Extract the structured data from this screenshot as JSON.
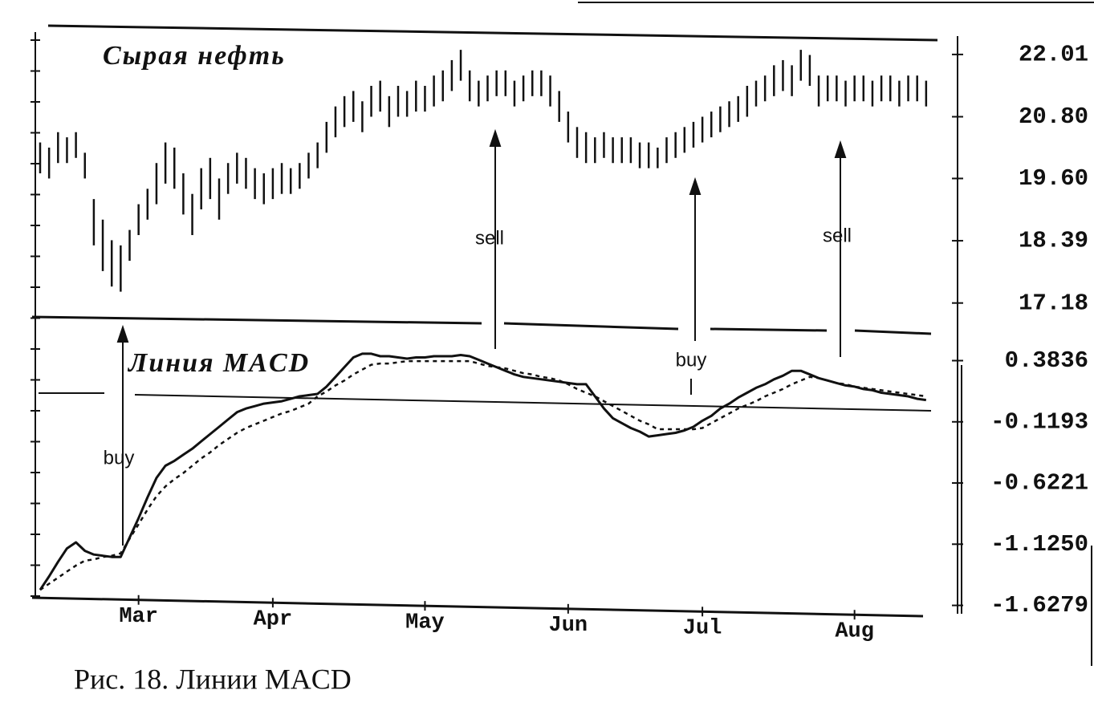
{
  "caption": "Рис. 18. Линии MACD",
  "chart_data": [
    {
      "type": "ohlc",
      "title": "Сырая нефть",
      "color": "#111111",
      "high": [
        20.3,
        20.2,
        20.5,
        20.4,
        20.5,
        20.1,
        19.2,
        18.8,
        18.4,
        18.3,
        18.6,
        19.1,
        19.4,
        19.9,
        20.3,
        20.2,
        19.7,
        19.3,
        19.8,
        20.0,
        19.6,
        19.9,
        20.1,
        20.0,
        19.8,
        19.7,
        19.8,
        19.9,
        19.8,
        19.9,
        20.1,
        20.3,
        20.7,
        21.0,
        21.2,
        21.3,
        21.1,
        21.4,
        21.5,
        21.2,
        21.4,
        21.3,
        21.5,
        21.4,
        21.6,
        21.7,
        21.9,
        22.1,
        21.7,
        21.5,
        21.6,
        21.7,
        21.7,
        21.5,
        21.6,
        21.7,
        21.7,
        21.6,
        21.3,
        20.9,
        20.6,
        20.5,
        20.4,
        20.5,
        20.4,
        20.4,
        20.4,
        20.3,
        20.3,
        20.2,
        20.4,
        20.5,
        20.6,
        20.7,
        20.8,
        20.9,
        21.0,
        21.1,
        21.2,
        21.4,
        21.5,
        21.6,
        21.8,
        21.9,
        21.8,
        22.1,
        22.0,
        21.6,
        21.6,
        21.6,
        21.5,
        21.6,
        21.6,
        21.5,
        21.6,
        21.6,
        21.5,
        21.6,
        21.6,
        21.5
      ],
      "low": [
        19.7,
        19.6,
        19.9,
        19.9,
        20.0,
        19.6,
        18.3,
        17.8,
        17.5,
        17.4,
        18.0,
        18.5,
        18.8,
        19.1,
        19.5,
        19.4,
        18.9,
        18.5,
        19.0,
        19.2,
        18.8,
        19.3,
        19.5,
        19.4,
        19.2,
        19.1,
        19.2,
        19.3,
        19.3,
        19.4,
        19.6,
        19.8,
        20.1,
        20.4,
        20.6,
        20.7,
        20.5,
        20.8,
        20.9,
        20.6,
        20.8,
        20.8,
        20.9,
        20.9,
        21.0,
        21.1,
        21.3,
        21.5,
        21.1,
        21.0,
        21.1,
        21.2,
        21.2,
        21.0,
        21.1,
        21.2,
        21.2,
        21.0,
        20.7,
        20.3,
        20.0,
        19.9,
        19.9,
        20.0,
        19.9,
        19.9,
        19.9,
        19.8,
        19.8,
        19.8,
        19.9,
        20.0,
        20.1,
        20.2,
        20.3,
        20.4,
        20.5,
        20.6,
        20.7,
        20.8,
        21.0,
        21.1,
        21.2,
        21.3,
        21.2,
        21.5,
        21.4,
        21.0,
        21.1,
        21.1,
        21.0,
        21.1,
        21.1,
        21.0,
        21.1,
        21.1,
        21.0,
        21.1,
        21.1,
        21.0
      ],
      "xlim": [
        0,
        100
      ],
      "ylim": [
        16.91,
        22.32
      ],
      "yticks": [
        22.01,
        {
          "value": 20.8,
          "label": "20.80"
        },
        {
          "value": 19.6,
          "label": "19.60"
        },
        18.39,
        17.18
      ],
      "annotations": [
        "sell",
        "sell"
      ]
    },
    {
      "type": "line",
      "title": "Линия MACD",
      "series": [
        {
          "color": "#111111",
          "style": "solid",
          "values": [
            -1.5,
            -1.39,
            -1.27,
            -1.16,
            -1.11,
            -1.18,
            -1.21,
            -1.22,
            -1.23,
            -1.23,
            -1.07,
            -0.91,
            -0.74,
            -0.58,
            -0.48,
            -0.44,
            -0.39,
            -0.34,
            -0.28,
            -0.22,
            -0.16,
            -0.1,
            -0.04,
            -0.01,
            0.01,
            0.03,
            0.04,
            0.05,
            0.07,
            0.09,
            0.1,
            0.11,
            0.17,
            0.25,
            0.33,
            0.41,
            0.44,
            0.44,
            0.42,
            0.42,
            0.41,
            0.4,
            0.41,
            0.41,
            0.42,
            0.42,
            0.42,
            0.43,
            0.42,
            0.39,
            0.36,
            0.33,
            0.3,
            0.27,
            0.25,
            0.24,
            0.23,
            0.22,
            0.21,
            0.2,
            0.19,
            0.19,
            0.09,
            -0.01,
            -0.09,
            -0.13,
            -0.17,
            -0.2,
            -0.24,
            -0.23,
            -0.22,
            -0.21,
            -0.19,
            -0.16,
            -0.11,
            -0.07,
            -0.01,
            0.03,
            0.08,
            0.12,
            0.16,
            0.19,
            0.23,
            0.26,
            0.3,
            0.3,
            0.27,
            0.24,
            0.22,
            0.2,
            0.18,
            0.17,
            0.15,
            0.14,
            0.12,
            0.11,
            0.1,
            0.09,
            0.07,
            0.06
          ]
        },
        {
          "color": "#111111",
          "style": "dotted",
          "values": [
            -1.5,
            -1.45,
            -1.4,
            -1.35,
            -1.3,
            -1.26,
            -1.25,
            -1.23,
            -1.22,
            -1.2,
            -1.08,
            -0.96,
            -0.84,
            -0.73,
            -0.65,
            -0.59,
            -0.54,
            -0.48,
            -0.42,
            -0.37,
            -0.31,
            -0.26,
            -0.21,
            -0.17,
            -0.14,
            -0.11,
            -0.08,
            -0.05,
            -0.03,
            0.0,
            0.03,
            0.09,
            0.13,
            0.18,
            0.22,
            0.27,
            0.31,
            0.35,
            0.36,
            0.36,
            0.37,
            0.38,
            0.38,
            0.38,
            0.38,
            0.38,
            0.38,
            0.38,
            0.38,
            0.36,
            0.34,
            0.33,
            0.32,
            0.3,
            0.28,
            0.27,
            0.25,
            0.24,
            0.22,
            0.19,
            0.15,
            0.12,
            0.09,
            0.05,
            0.01,
            -0.03,
            -0.07,
            -0.11,
            -0.14,
            -0.18,
            -0.18,
            -0.18,
            -0.18,
            -0.18,
            -0.17,
            -0.13,
            -0.09,
            -0.05,
            -0.01,
            0.02,
            0.05,
            0.09,
            0.12,
            0.15,
            0.19,
            0.22,
            0.25,
            0.24,
            0.22,
            0.2,
            0.19,
            0.17,
            0.16,
            0.15,
            0.14,
            0.13,
            0.12,
            0.11,
            0.1,
            0.09
          ]
        }
      ],
      "xlim": [
        0,
        100
      ],
      "ylim": [
        -1.69,
        0.71
      ],
      "yticks": [
        0.3836,
        -0.1193,
        -0.6221,
        {
          "value": -1.125,
          "label": "-1.1250"
        },
        -1.6279
      ],
      "xticks": [
        {
          "value": 11,
          "label": "Mar"
        },
        {
          "value": 26,
          "label": "Apr"
        },
        {
          "value": 43,
          "label": "May"
        },
        {
          "value": 59,
          "label": "Jun"
        },
        {
          "value": 74,
          "label": "Jul"
        },
        {
          "value": 91,
          "label": "Aug"
        }
      ],
      "annotations": [
        "buy",
        "buy"
      ]
    }
  ]
}
